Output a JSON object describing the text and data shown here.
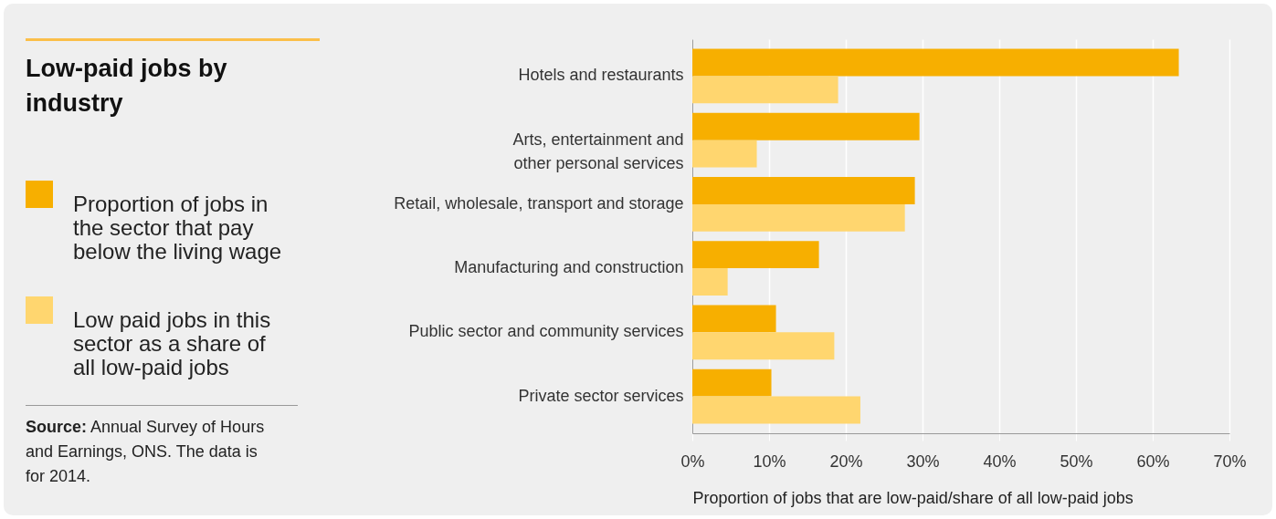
{
  "chart_data": {
    "type": "bar",
    "orientation": "horizontal",
    "title": "Low-paid jobs by industry",
    "categories": [
      "Hotels and restaurants",
      "Arts, entertainment and other personal services",
      "Retail, wholesale, transport and storage",
      "Manufacturing and construction",
      "Public sector and community services",
      "Private sector services"
    ],
    "series": [
      {
        "name": "Proportion of jobs in the sector that pay below the living wage",
        "color": "#f7af00",
        "values": [
          63.4,
          29.6,
          29.0,
          16.5,
          10.9,
          10.3
        ]
      },
      {
        "name": "Low paid jobs in this sector as a share of all low-paid jobs",
        "color": "#ffd66f",
        "values": [
          19.0,
          8.4,
          27.7,
          4.6,
          18.5,
          21.9
        ]
      }
    ],
    "xlabel": "Proportion of jobs that are low-paid/share of all low-paid jobs",
    "xlim": [
      0,
      70
    ],
    "xticks": [
      {
        "value": 0,
        "label": "0%"
      },
      {
        "value": 10,
        "label": "10%"
      },
      {
        "value": 20,
        "label": "20%"
      },
      {
        "value": 30,
        "label": "30%"
      },
      {
        "value": 40,
        "label": "40%"
      },
      {
        "value": 50,
        "label": "50%"
      },
      {
        "value": 60,
        "label": "60%"
      },
      {
        "value": 70,
        "label": "70%"
      }
    ],
    "grid": "x",
    "legend": "left",
    "annotations": [
      "Source: Annual Survey of Hours and Earnings, ONS. The data is for 2014."
    ]
  }
}
